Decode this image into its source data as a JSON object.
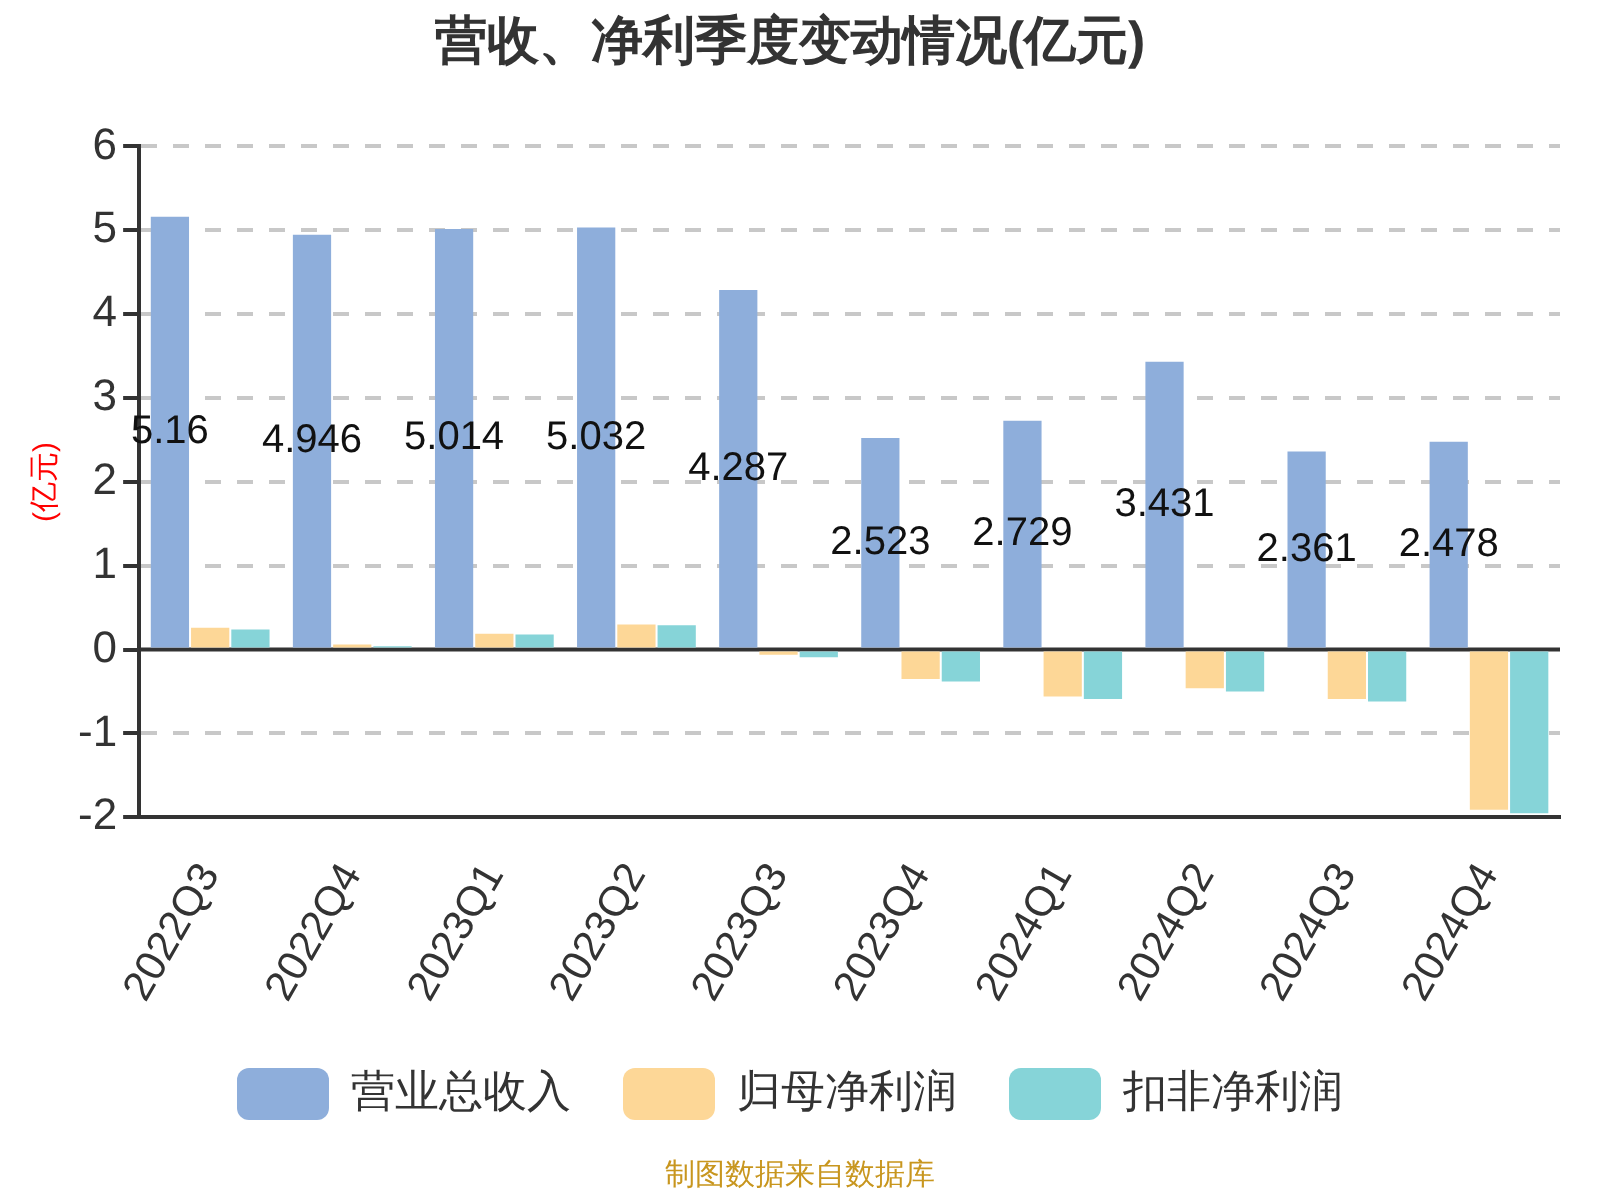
{
  "chart_data": {
    "type": "bar",
    "title": "营收、净利季度变动情况(亿元)",
    "ylabel": "(亿元)",
    "categories": [
      "2022Q3",
      "2022Q4",
      "2023Q1",
      "2023Q2",
      "2023Q3",
      "2023Q4",
      "2024Q1",
      "2024Q2",
      "2024Q3",
      "2024Q4"
    ],
    "series": [
      {
        "name": "营业总收入",
        "color": "#8eaedb",
        "values": [
          5.16,
          4.946,
          5.014,
          5.032,
          4.287,
          2.523,
          2.729,
          3.431,
          2.361,
          2.478
        ],
        "value_labels": [
          "5.16",
          "4.946",
          "5.014",
          "5.032",
          "4.287",
          "2.523",
          "2.729",
          "3.431",
          "2.361",
          "2.478"
        ]
      },
      {
        "name": "归母净利润",
        "color": "#fdd797",
        "values": [
          0.26,
          0.06,
          0.19,
          0.3,
          -0.06,
          -0.35,
          -0.56,
          -0.46,
          -0.59,
          -1.91
        ]
      },
      {
        "name": "扣非净利润",
        "color": "#86d4d8",
        "values": [
          0.24,
          0.04,
          0.18,
          0.29,
          -0.09,
          -0.38,
          -0.59,
          -0.5,
          -0.62,
          -1.95
        ]
      }
    ],
    "ylim": [
      -2,
      6
    ],
    "yticks": [
      -2,
      -1,
      0,
      1,
      2,
      3,
      4,
      5,
      6
    ],
    "grid": "y",
    "legend": "bottom",
    "annotations": [
      "制图数据来自数据库"
    ]
  }
}
